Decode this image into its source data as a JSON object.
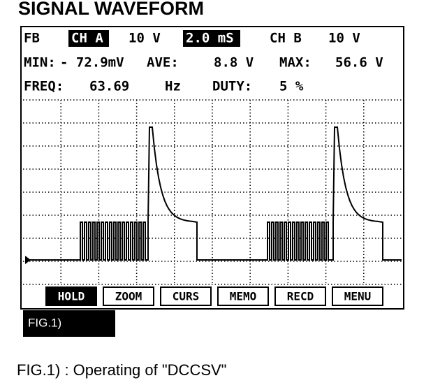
{
  "title": "SIGNAL WAVEFORM",
  "status": {
    "row1": [
      "FB",
      "CH A",
      "10 V",
      "2.0 mS",
      "CH B",
      "10 V"
    ],
    "row2": [
      "MIN:",
      "- 72.9mV",
      "AVE:",
      "8.8 V",
      "MAX:",
      "56.6 V"
    ],
    "row3": [
      "FREQ:",
      "63.69",
      "Hz",
      "DUTY:",
      "5 %"
    ]
  },
  "buttons": [
    "HOLD",
    "ZOOM",
    "CURS",
    "MEMO",
    "RECD",
    "MENU"
  ],
  "figure_tag": "FIG.1)",
  "caption": "FIG.1) : Operating of \"DCCSV\""
}
